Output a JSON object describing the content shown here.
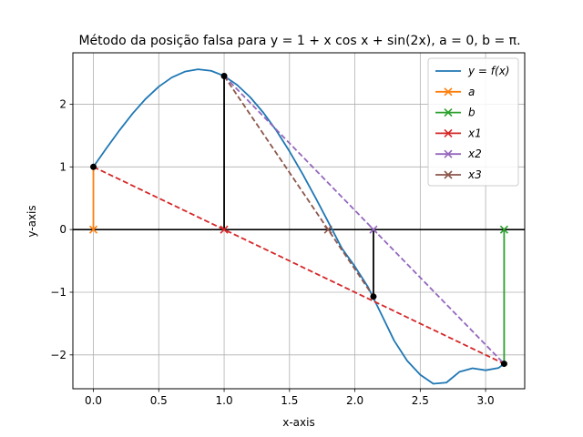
{
  "chart_data": {
    "type": "line",
    "title": "Método da posição falsa para y = 1 + x cos x + sin(2x),  a = 0,  b = π.",
    "xlabel": "x-axis",
    "ylabel": "y-axis",
    "xlim": [
      -0.157,
      3.299
    ],
    "ylim": [
      -2.54,
      2.82
    ],
    "xticks": [
      0.0,
      0.5,
      1.0,
      1.5,
      2.0,
      2.5,
      3.0
    ],
    "xtick_labels": [
      "0.0",
      "0.5",
      "1.0",
      "1.5",
      "2.0",
      "2.5",
      "3.0"
    ],
    "yticks": [
      -2,
      -1,
      0,
      1,
      2
    ],
    "ytick_labels": [
      "−2",
      "−1",
      "0",
      "1",
      "2"
    ],
    "grid": true,
    "legend_position": "top-right",
    "curve": {
      "name": "y = f(x)",
      "color": "#1f77b4",
      "x": [
        0,
        0.1,
        0.2,
        0.3,
        0.4,
        0.5,
        0.6,
        0.7,
        0.8,
        0.9,
        1.0,
        1.1,
        1.2,
        1.3,
        1.4,
        1.5,
        1.6,
        1.7,
        1.8,
        1.9,
        2.0,
        2.1,
        2.2,
        2.3,
        2.4,
        2.5,
        2.6,
        2.7,
        2.8,
        2.9,
        3.0,
        3.1,
        3.1416
      ],
      "y": [
        1.0,
        1.298,
        1.585,
        1.851,
        2.086,
        2.28,
        2.427,
        2.52,
        2.557,
        2.533,
        2.45,
        2.306,
        2.11,
        1.865,
        1.578,
        1.247,
        0.887,
        0.504,
        0.106,
        -0.298,
        -0.589,
        -0.915,
        -1.34,
        -1.771,
        -2.093,
        -2.316,
        -2.46,
        -2.442,
        -2.27,
        -2.213,
        -2.245,
        -2.207,
        -2.1416
      ]
    },
    "series": [
      {
        "name": "a",
        "color": "#ff7f0e",
        "x": [
          0,
          0
        ],
        "y": [
          0,
          1.0
        ]
      },
      {
        "name": "b",
        "color": "#2ca02c",
        "x": [
          3.1416,
          3.1416
        ],
        "y": [
          0,
          -2.1416
        ]
      },
      {
        "name": "x1",
        "color": "#d62728",
        "x": [
          0,
          3.1416
        ],
        "y": [
          1.0,
          -2.1416
        ],
        "root": 1.0
      },
      {
        "name": "x2",
        "color": "#9467bd",
        "x": [
          1.0,
          3.1416
        ],
        "y": [
          2.45,
          -2.1416
        ],
        "root": 2.142
      },
      {
        "name": "x3",
        "color": "#8c564b",
        "x": [
          1.0,
          2.142
        ],
        "y": [
          2.45,
          -1.07
        ],
        "root": 1.795
      }
    ],
    "vertical_segments": [
      {
        "x": 1.0,
        "y": [
          0,
          2.45
        ]
      },
      {
        "x": 2.142,
        "y": [
          0,
          -1.07
        ]
      }
    ],
    "points": [
      {
        "x": 0,
        "y": 1.0
      },
      {
        "x": 1.0,
        "y": 2.45
      },
      {
        "x": 2.142,
        "y": -1.07
      },
      {
        "x": 3.1416,
        "y": -2.1416
      }
    ],
    "legend": [
      {
        "label": "y = f(x)",
        "color": "#1f77b4",
        "marker": "none"
      },
      {
        "label": "a",
        "color": "#ff7f0e",
        "marker": "x"
      },
      {
        "label": "b",
        "color": "#2ca02c",
        "marker": "x"
      },
      {
        "label": "x1",
        "color": "#d62728",
        "marker": "x"
      },
      {
        "label": "x2",
        "color": "#9467bd",
        "marker": "x"
      },
      {
        "label": "x3",
        "color": "#8c564b",
        "marker": "x"
      }
    ]
  }
}
